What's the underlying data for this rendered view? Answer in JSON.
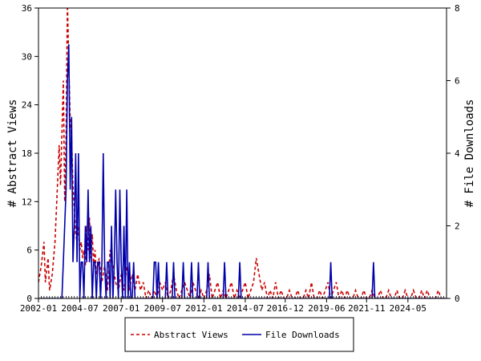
{
  "chart_data": {
    "type": "line",
    "title": "",
    "ylabel_left": "# Abstract Views",
    "ylabel_right": "# File Downloads",
    "y_left_range": [
      0,
      36
    ],
    "y_left_ticks": [
      "0",
      "6",
      "12",
      "18",
      "24",
      "30",
      "36"
    ],
    "y_right_range": [
      0,
      8
    ],
    "y_right_ticks": [
      "0",
      "2",
      "4",
      "6",
      "8"
    ],
    "x_range": [
      "2002-01",
      "2026-09"
    ],
    "x_ticks": [
      "2002-01",
      "2004-07",
      "2007-01",
      "2009-07",
      "2012-01",
      "2014-07",
      "2016-12",
      "2019-06",
      "2021-11",
      "2024-05"
    ],
    "grid": false,
    "legend_position": "bottom",
    "series": [
      {
        "name": "Abstract Views",
        "axis": "left",
        "color": "#cc0000",
        "style": "dashed",
        "points": [
          [
            "2002-01",
            2
          ],
          [
            "2002-03",
            4
          ],
          [
            "2002-05",
            7
          ],
          [
            "2002-06",
            2
          ],
          [
            "2002-08",
            5
          ],
          [
            "2002-09",
            1
          ],
          [
            "2002-11",
            3
          ],
          [
            "2003-01",
            7
          ],
          [
            "2003-03",
            15
          ],
          [
            "2003-04",
            19
          ],
          [
            "2003-05",
            14
          ],
          [
            "2003-07",
            27
          ],
          [
            "2003-08",
            12
          ],
          [
            "2003-09",
            20
          ],
          [
            "2003-10",
            37
          ],
          [
            "2003-11",
            29
          ],
          [
            "2003-12",
            22
          ],
          [
            "2004-01",
            20
          ],
          [
            "2004-02",
            14
          ],
          [
            "2004-03",
            11
          ],
          [
            "2004-04",
            8
          ],
          [
            "2004-05",
            7
          ],
          [
            "2004-06",
            9
          ],
          [
            "2004-07",
            6
          ],
          [
            "2004-08",
            7
          ],
          [
            "2004-09",
            5
          ],
          [
            "2004-10",
            6
          ],
          [
            "2004-11",
            4
          ],
          [
            "2004-12",
            9
          ],
          [
            "2005-01",
            6
          ],
          [
            "2005-02",
            10
          ],
          [
            "2005-03",
            5
          ],
          [
            "2005-04",
            8
          ],
          [
            "2005-05",
            4
          ],
          [
            "2005-06",
            6
          ],
          [
            "2005-07",
            3
          ],
          [
            "2005-09",
            5
          ],
          [
            "2005-11",
            2
          ],
          [
            "2006-01",
            4
          ],
          [
            "2006-03",
            1
          ],
          [
            "2006-05",
            6
          ],
          [
            "2006-07",
            4
          ],
          [
            "2006-09",
            2
          ],
          [
            "2006-11",
            1
          ],
          [
            "2007-01",
            3
          ],
          [
            "2007-03",
            1
          ],
          [
            "2007-05",
            4
          ],
          [
            "2007-07",
            1
          ],
          [
            "2007-09",
            3
          ],
          [
            "2007-11",
            1
          ],
          [
            "2008-01",
            3
          ],
          [
            "2008-03",
            1
          ],
          [
            "2008-05",
            2
          ],
          [
            "2008-07",
            0
          ],
          [
            "2008-09",
            1
          ],
          [
            "2008-11",
            0
          ],
          [
            "2009-01",
            1
          ],
          [
            "2009-03",
            0
          ],
          [
            "2009-05",
            2
          ],
          [
            "2009-07",
            1
          ],
          [
            "2009-09",
            2
          ],
          [
            "2009-11",
            0
          ],
          [
            "2010-01",
            1
          ],
          [
            "2010-03",
            3
          ],
          [
            "2010-05",
            1
          ],
          [
            "2010-07",
            0
          ],
          [
            "2010-09",
            1
          ],
          [
            "2010-11",
            2
          ],
          [
            "2011-01",
            1
          ],
          [
            "2011-03",
            0
          ],
          [
            "2011-05",
            2
          ],
          [
            "2011-07",
            1
          ],
          [
            "2011-09",
            0
          ],
          [
            "2011-11",
            1
          ],
          [
            "2012-01",
            0
          ],
          [
            "2012-03",
            1
          ],
          [
            "2012-05",
            3
          ],
          [
            "2012-07",
            0
          ],
          [
            "2012-09",
            1
          ],
          [
            "2012-11",
            2
          ],
          [
            "2013-01",
            0
          ],
          [
            "2013-03",
            1
          ],
          [
            "2013-05",
            0
          ],
          [
            "2013-07",
            1
          ],
          [
            "2013-09",
            2
          ],
          [
            "2013-11",
            0
          ],
          [
            "2014-01",
            1
          ],
          [
            "2014-03",
            0
          ],
          [
            "2014-05",
            1
          ],
          [
            "2014-07",
            2
          ],
          [
            "2014-09",
            0
          ],
          [
            "2014-11",
            1
          ],
          [
            "2015-01",
            2
          ],
          [
            "2015-03",
            5
          ],
          [
            "2015-05",
            3
          ],
          [
            "2015-07",
            1
          ],
          [
            "2015-09",
            2
          ],
          [
            "2015-11",
            0
          ],
          [
            "2016-01",
            1
          ],
          [
            "2016-03",
            0
          ],
          [
            "2016-05",
            2
          ],
          [
            "2016-07",
            0
          ],
          [
            "2016-09",
            1
          ],
          [
            "2016-11",
            0
          ],
          [
            "2017-01",
            0
          ],
          [
            "2017-03",
            1
          ],
          [
            "2017-05",
            0
          ],
          [
            "2017-07",
            0
          ],
          [
            "2017-09",
            1
          ],
          [
            "2017-11",
            0
          ],
          [
            "2018-01",
            0
          ],
          [
            "2018-03",
            1
          ],
          [
            "2018-05",
            0
          ],
          [
            "2018-07",
            2
          ],
          [
            "2018-09",
            0
          ],
          [
            "2018-11",
            0
          ],
          [
            "2019-01",
            1
          ],
          [
            "2019-03",
            0
          ],
          [
            "2019-05",
            1
          ],
          [
            "2019-07",
            2
          ],
          [
            "2019-09",
            0
          ],
          [
            "2019-11",
            1
          ],
          [
            "2020-01",
            2
          ],
          [
            "2020-03",
            0
          ],
          [
            "2020-05",
            1
          ],
          [
            "2020-07",
            0
          ],
          [
            "2020-09",
            1
          ],
          [
            "2020-11",
            0
          ],
          [
            "2021-01",
            0
          ],
          [
            "2021-03",
            1
          ],
          [
            "2021-05",
            0
          ],
          [
            "2021-07",
            0
          ],
          [
            "2021-09",
            1
          ],
          [
            "2021-11",
            0
          ],
          [
            "2022-01",
            0
          ],
          [
            "2022-03",
            1
          ],
          [
            "2022-05",
            0
          ],
          [
            "2022-07",
            0
          ],
          [
            "2022-09",
            1
          ],
          [
            "2022-11",
            0
          ],
          [
            "2023-01",
            0
          ],
          [
            "2023-03",
            1
          ],
          [
            "2023-05",
            0
          ],
          [
            "2023-07",
            0
          ],
          [
            "2023-09",
            1
          ],
          [
            "2023-11",
            0
          ],
          [
            "2024-01",
            0
          ],
          [
            "2024-03",
            1
          ],
          [
            "2024-05",
            0
          ],
          [
            "2024-07",
            0
          ],
          [
            "2024-09",
            1
          ],
          [
            "2024-11",
            0
          ],
          [
            "2025-01",
            0
          ],
          [
            "2025-03",
            1
          ],
          [
            "2025-05",
            0
          ],
          [
            "2025-07",
            1
          ],
          [
            "2025-09",
            0
          ],
          [
            "2025-11",
            0
          ],
          [
            "2026-01",
            0
          ],
          [
            "2026-03",
            1
          ],
          [
            "2026-05",
            0
          ],
          [
            "2026-07",
            0
          ]
        ]
      },
      {
        "name": "File Downloads",
        "axis": "right",
        "color": "#0000aa",
        "style": "solid",
        "points": [
          [
            "2002-01",
            0
          ],
          [
            "2003-06",
            0
          ],
          [
            "2003-07",
            1
          ],
          [
            "2003-08",
            2
          ],
          [
            "2003-09",
            3
          ],
          [
            "2003-10",
            6
          ],
          [
            "2003-11",
            7
          ],
          [
            "2003-12",
            3
          ],
          [
            "2004-01",
            5
          ],
          [
            "2004-02",
            1
          ],
          [
            "2004-03",
            2
          ],
          [
            "2004-04",
            4
          ],
          [
            "2004-05",
            1
          ],
          [
            "2004-06",
            4
          ],
          [
            "2004-07",
            0
          ],
          [
            "2004-08",
            1
          ],
          [
            "2004-09",
            1
          ],
          [
            "2004-10",
            0
          ],
          [
            "2004-11",
            2
          ],
          [
            "2004-12",
            1
          ],
          [
            "2005-01",
            3
          ],
          [
            "2005-02",
            1
          ],
          [
            "2005-03",
            2
          ],
          [
            "2005-04",
            0
          ],
          [
            "2005-05",
            1
          ],
          [
            "2005-06",
            1
          ],
          [
            "2005-07",
            0
          ],
          [
            "2005-08",
            1
          ],
          [
            "2005-09",
            1
          ],
          [
            "2005-10",
            0
          ],
          [
            "2005-11",
            1
          ],
          [
            "2005-12",
            4
          ],
          [
            "2006-01",
            1
          ],
          [
            "2006-02",
            0
          ],
          [
            "2006-03",
            1
          ],
          [
            "2006-04",
            1
          ],
          [
            "2006-05",
            0
          ],
          [
            "2006-06",
            2
          ],
          [
            "2006-07",
            0
          ],
          [
            "2006-08",
            1
          ],
          [
            "2006-09",
            3
          ],
          [
            "2006-10",
            1
          ],
          [
            "2006-11",
            0
          ],
          [
            "2006-12",
            3
          ],
          [
            "2007-01",
            1
          ],
          [
            "2007-02",
            0
          ],
          [
            "2007-03",
            2
          ],
          [
            "2007-04",
            0
          ],
          [
            "2007-05",
            3
          ],
          [
            "2007-06",
            0
          ],
          [
            "2007-07",
            1
          ],
          [
            "2007-08",
            0
          ],
          [
            "2007-09",
            0
          ],
          [
            "2007-10",
            1
          ],
          [
            "2007-11",
            0
          ],
          [
            "2008-01",
            0
          ],
          [
            "2008-12",
            0
          ],
          [
            "2009-01",
            1
          ],
          [
            "2009-02",
            1
          ],
          [
            "2009-03",
            0
          ],
          [
            "2009-04",
            1
          ],
          [
            "2009-05",
            0
          ],
          [
            "2009-09",
            0
          ],
          [
            "2009-10",
            1
          ],
          [
            "2009-11",
            0
          ],
          [
            "2010-02",
            0
          ],
          [
            "2010-03",
            1
          ],
          [
            "2010-04",
            0
          ],
          [
            "2010-09",
            0
          ],
          [
            "2010-10",
            1
          ],
          [
            "2010-11",
            0
          ],
          [
            "2011-03",
            0
          ],
          [
            "2011-04",
            1
          ],
          [
            "2011-05",
            0
          ],
          [
            "2011-08",
            0
          ],
          [
            "2011-09",
            1
          ],
          [
            "2011-10",
            0
          ],
          [
            "2012-03",
            0
          ],
          [
            "2012-04",
            1
          ],
          [
            "2012-05",
            0
          ],
          [
            "2013-03",
            0
          ],
          [
            "2013-04",
            1
          ],
          [
            "2013-05",
            0
          ],
          [
            "2014-02",
            0
          ],
          [
            "2014-03",
            1
          ],
          [
            "2014-04",
            0
          ],
          [
            "2019-08",
            0
          ],
          [
            "2019-09",
            1
          ],
          [
            "2019-10",
            0
          ],
          [
            "2022-03",
            0
          ],
          [
            "2022-04",
            1
          ],
          [
            "2022-05",
            0
          ],
          [
            "2026-09",
            0
          ]
        ]
      }
    ]
  }
}
